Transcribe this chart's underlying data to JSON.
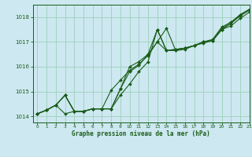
{
  "background_color": "#cde8f0",
  "plot_bg_color": "#cde8f0",
  "grid_color": "#9ecfbb",
  "line_color": "#1a5c1a",
  "marker_color": "#1a5c1a",
  "xlabel": "Graphe pression niveau de la mer (hPa)",
  "xlim": [
    -0.5,
    23
  ],
  "ylim": [
    1013.75,
    1018.5
  ],
  "yticks": [
    1014,
    1015,
    1016,
    1017,
    1018
  ],
  "xticks": [
    0,
    1,
    2,
    3,
    4,
    5,
    6,
    7,
    8,
    9,
    10,
    11,
    12,
    13,
    14,
    15,
    16,
    17,
    18,
    19,
    20,
    21,
    22,
    23
  ],
  "series": [
    [
      1014.1,
      1014.25,
      1014.45,
      1014.85,
      1014.2,
      1014.2,
      1014.3,
      1014.3,
      1014.3,
      1015.1,
      1015.8,
      1016.05,
      1016.5,
      1017.5,
      1016.65,
      1016.7,
      1016.75,
      1016.85,
      1017.0,
      1017.05,
      1017.55,
      1017.75,
      1018.1,
      1018.3
    ],
    [
      1014.1,
      1014.25,
      1014.45,
      1014.85,
      1014.2,
      1014.2,
      1014.3,
      1014.3,
      1014.3,
      1015.1,
      1016.0,
      1016.2,
      1016.5,
      1017.0,
      1017.55,
      1016.65,
      1016.7,
      1016.85,
      1017.0,
      1017.1,
      1017.6,
      1017.8,
      1018.1,
      1018.32
    ],
    [
      1014.1,
      1014.25,
      1014.45,
      1014.85,
      1014.2,
      1014.2,
      1014.3,
      1014.3,
      1015.05,
      1015.45,
      1015.85,
      1016.1,
      1016.45,
      1017.0,
      1016.65,
      1016.65,
      1016.75,
      1016.85,
      1017.0,
      1017.05,
      1017.5,
      1017.75,
      1018.05,
      1018.28
    ],
    [
      1014.1,
      1014.25,
      1014.45,
      1014.1,
      1014.2,
      1014.2,
      1014.3,
      1014.3,
      1014.3,
      1014.85,
      1015.3,
      1015.8,
      1016.2,
      1017.5,
      1016.65,
      1016.7,
      1016.75,
      1016.85,
      1016.95,
      1017.05,
      1017.5,
      1017.65,
      1017.95,
      1018.2
    ]
  ],
  "figsize": [
    3.2,
    2.0
  ],
  "dpi": 100
}
